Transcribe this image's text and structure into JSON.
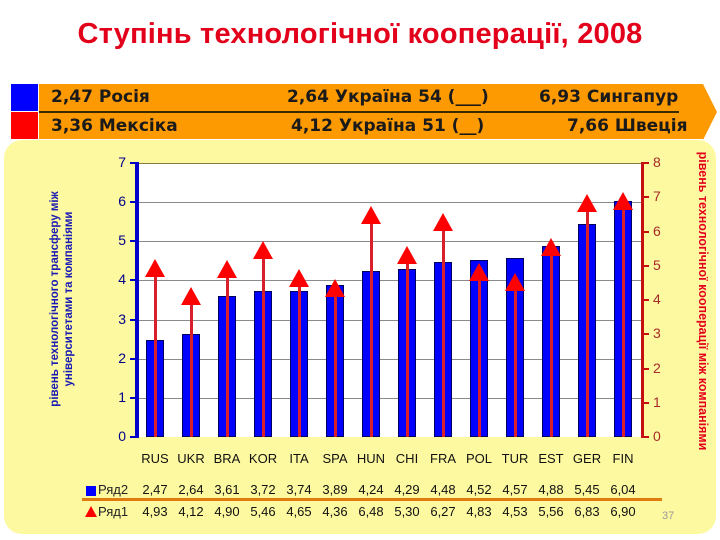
{
  "title": "Ступінь технологічної кооперації, 2008",
  "banner": {
    "row1": [
      "2,47 Росія",
      "2,64 Україна 54 (___)",
      "6,93 Сингапур"
    ],
    "row2": [
      "3,36 Мексіка",
      "4,12 Україна 51 (__)",
      "7,66 Швеція"
    ],
    "colors": {
      "blue_swatch": "#0000ff",
      "red_swatch": "#ff0000",
      "bar": "#fd9a02"
    }
  },
  "axes": {
    "left_label": "рівень технологічного трансферу між університетами та компаніями",
    "right_label": "рівень технологічної кооперації між компаніями",
    "left_ticks": [
      "0",
      "1",
      "2",
      "3",
      "4",
      "5",
      "6",
      "7"
    ],
    "right_ticks": [
      "0",
      "1",
      "2",
      "3",
      "4",
      "5",
      "6",
      "7",
      "8"
    ]
  },
  "table": {
    "row_ryad2_label": "Ряд2",
    "row_ryad1_label": "Ряд1",
    "ryad2": [
      "2,47",
      "2,64",
      "3,61",
      "3,72",
      "3,74",
      "3,89",
      "4,24",
      "4,29",
      "4,48",
      "4,52",
      "4,57",
      "4,88",
      "5,45",
      "6,04"
    ],
    "ryad1": [
      "4,93",
      "4,12",
      "4,90",
      "5,46",
      "4,65",
      "4,36",
      "6,48",
      "5,30",
      "6,27",
      "4,83",
      "4,53",
      "5,56",
      "6,83",
      "6,90"
    ]
  },
  "page_number": "37",
  "chart_data": {
    "type": "bar",
    "title": "Ступінь технологічної кооперації, 2008",
    "categories": [
      "RUS",
      "UKR",
      "BRA",
      "KOR",
      "ITA",
      "SPA",
      "HUN",
      "CHI",
      "FRA",
      "POL",
      "TUR",
      "EST",
      "GER",
      "FIN"
    ],
    "series": [
      {
        "name": "Ряд2",
        "type": "bar",
        "axis": "left",
        "color": "#0000ff",
        "values": [
          2.47,
          2.64,
          3.61,
          3.72,
          3.74,
          3.89,
          4.24,
          4.29,
          4.48,
          4.52,
          4.57,
          4.88,
          5.45,
          6.04
        ]
      },
      {
        "name": "Ряд1",
        "type": "arrow-marker",
        "axis": "right",
        "color": "#ff0000",
        "values": [
          4.93,
          4.12,
          4.9,
          5.46,
          4.65,
          4.36,
          6.48,
          5.3,
          6.27,
          4.83,
          4.53,
          5.56,
          6.83,
          6.9
        ]
      }
    ],
    "ylabel": "рівень технологічного трансферу між університетами та компаніями",
    "y2label": "рівень технологічної кооперації між компаніями",
    "xlabel": "",
    "ylim": [
      0,
      7
    ],
    "y2lim": [
      0,
      8
    ],
    "grid": true,
    "legend": "data table below chart"
  }
}
